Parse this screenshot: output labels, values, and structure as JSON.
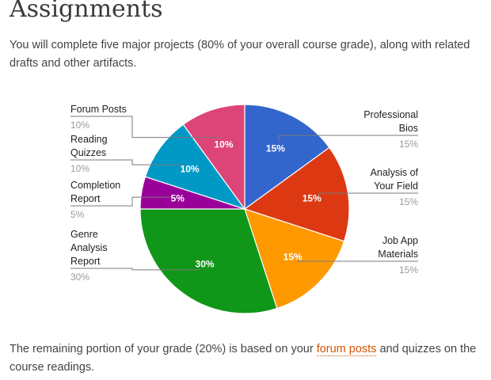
{
  "page": {
    "title": "Assignments",
    "intro": "You will complete five major projects (80% of your overall course grade), along with related drafts and other artifacts.",
    "outro_before": "The remaining portion of your grade (20%) is based on your ",
    "outro_link": "forum posts",
    "outro_after": " and quizzes on the course readings."
  },
  "chart_data": {
    "type": "pie",
    "title": "",
    "start_angle_deg": 0,
    "direction": "clockwise",
    "slices": [
      {
        "label_lines": [
          "Professional",
          "Bios"
        ],
        "value": 15,
        "display": "15%",
        "color": "#3366cc"
      },
      {
        "label_lines": [
          "Analysis of",
          "Your Field"
        ],
        "value": 15,
        "display": "15%",
        "color": "#dc3912"
      },
      {
        "label_lines": [
          "Job App",
          "Materials"
        ],
        "value": 15,
        "display": "15%",
        "color": "#ff9900"
      },
      {
        "label_lines": [
          "Genre",
          "Analysis",
          "Report"
        ],
        "value": 30,
        "display": "30%",
        "color": "#109618"
      },
      {
        "label_lines": [
          "Completion",
          "Report"
        ],
        "value": 5,
        "display": "5%",
        "color": "#990099"
      },
      {
        "label_lines": [
          "Reading",
          "Quizzes"
        ],
        "value": 10,
        "display": "10%",
        "color": "#0099c6"
      },
      {
        "label_lines": [
          "Forum Posts"
        ],
        "value": 10,
        "display": "10%",
        "color": "#dd4477"
      }
    ]
  }
}
